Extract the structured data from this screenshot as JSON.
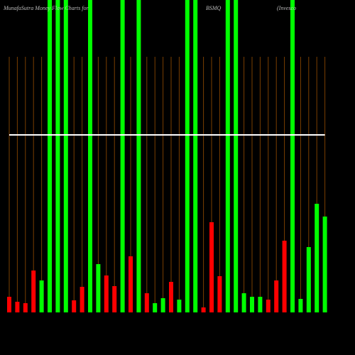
{
  "chart_data": {
    "type": "bar",
    "title": "MunafaSutra  Money Flow  Charts for",
    "ticker": "BSMQ",
    "name": "(Invesco",
    "categories": [
      null,
      null,
      null,
      null,
      null,
      null,
      null,
      null,
      null,
      null,
      null,
      null,
      null,
      null,
      null,
      null,
      null,
      null,
      null,
      null,
      null,
      null,
      null,
      null,
      null,
      null,
      null,
      null,
      null,
      null,
      null,
      null,
      null,
      null,
      null,
      null,
      null,
      null,
      null,
      null
    ],
    "values": [
      22,
      15,
      13,
      59,
      45,
      440,
      440,
      440,
      17,
      36,
      440,
      68,
      52,
      37,
      440,
      79,
      440,
      27,
      13,
      20,
      43,
      18,
      440,
      440,
      7,
      127,
      51,
      440,
      440,
      27,
      22,
      22,
      18,
      45,
      101,
      440,
      19,
      92,
      153,
      135
    ],
    "colors": [
      "#ff0000",
      "#ff0000",
      "#ff0000",
      "#ff0000",
      "#00ff00",
      "#00ff00",
      "#00ff00",
      "#00ff00",
      "#ff0000",
      "#ff0000",
      "#00ff00",
      "#00ff00",
      "#ff0000",
      "#ff0000",
      "#00ff00",
      "#ff0000",
      "#00ff00",
      "#ff0000",
      "#00ff00",
      "#00ff00",
      "#ff0000",
      "#00ff00",
      "#00ff00",
      "#00ff00",
      "#ff0000",
      "#ff0000",
      "#ff0000",
      "#00ff00",
      "#00ff00",
      "#00ff00",
      "#00ff00",
      "#00ff00",
      "#ff0000",
      "#ff0000",
      "#ff0000",
      "#00ff00",
      "#00ff00",
      "#00ff00",
      "#00ff00",
      "#00ff00"
    ],
    "line": {
      "color": "#ffffff",
      "values": [
        250,
        250,
        250,
        250,
        250,
        250,
        250,
        250,
        250,
        250,
        250,
        250,
        250,
        250,
        250,
        250,
        250,
        250,
        250,
        250,
        250,
        250,
        250,
        250,
        250,
        250,
        250,
        250,
        250,
        250,
        250,
        250,
        250,
        250,
        250,
        250,
        250,
        250,
        250,
        250
      ]
    },
    "ylim": [
      0,
      440
    ]
  }
}
